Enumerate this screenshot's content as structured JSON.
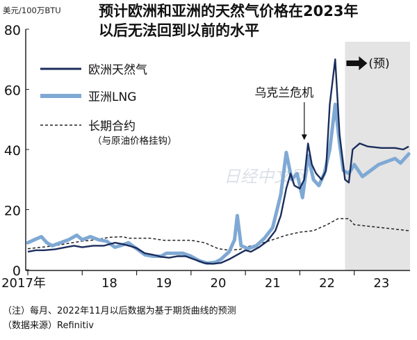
{
  "chart_data": {
    "type": "line",
    "title": "预计欧洲和亚洲的天然气价格在2023年以后无法回到以前的水平",
    "title_lines": [
      "预计欧洲和亚洲的天然气价格在2023年",
      "以后无法回到以前的水平"
    ],
    "ylabel": "美元/100万BTU",
    "ylim": [
      0,
      80
    ],
    "y_ticks": [
      0,
      20,
      40,
      60,
      80
    ],
    "x_range": [
      2017.0,
      2024.0
    ],
    "x_ticks": [
      {
        "label": "2017年",
        "x": 2017.0
      },
      {
        "label": "18",
        "x": 2018.0
      },
      {
        "label": "19",
        "x": 2019.0
      },
      {
        "label": "20",
        "x": 2020.0
      },
      {
        "label": "21",
        "x": 2021.0
      },
      {
        "label": "22",
        "x": 2022.0
      },
      {
        "label": "23",
        "x": 2023.0
      }
    ],
    "grid": false,
    "legend_position": "top-left",
    "forecast": {
      "start_x": 2022.83,
      "label": "(预)",
      "shade_color": "#e4e4e4"
    },
    "annotations": [
      {
        "text": "乌克兰危机",
        "x": 2022.12,
        "y": 42
      }
    ],
    "colors": {
      "europe": "#1b2d5c",
      "asia": "#7fa9d4",
      "contract": "#222222"
    },
    "series": [
      {
        "name": "欧洲天然气",
        "style": "solid-dark",
        "points": [
          [
            2017.0,
            6.0
          ],
          [
            2017.15,
            6.5
          ],
          [
            2017.3,
            6.5
          ],
          [
            2017.5,
            6.8
          ],
          [
            2017.7,
            7.5
          ],
          [
            2017.85,
            8.0
          ],
          [
            2018.0,
            7.5
          ],
          [
            2018.2,
            8.0
          ],
          [
            2018.4,
            8.0
          ],
          [
            2018.6,
            9.0
          ],
          [
            2018.75,
            8.5
          ],
          [
            2018.9,
            7.8
          ],
          [
            2019.0,
            7.2
          ],
          [
            2019.15,
            5.5
          ],
          [
            2019.3,
            5.0
          ],
          [
            2019.45,
            4.3
          ],
          [
            2019.6,
            4.0
          ],
          [
            2019.75,
            4.5
          ],
          [
            2019.9,
            4.5
          ],
          [
            2020.1,
            3.2
          ],
          [
            2020.25,
            2.2
          ],
          [
            2020.4,
            2.0
          ],
          [
            2020.55,
            2.3
          ],
          [
            2020.7,
            3.5
          ],
          [
            2020.85,
            5.0
          ],
          [
            2021.0,
            6.5
          ],
          [
            2021.1,
            6.0
          ],
          [
            2021.25,
            7.5
          ],
          [
            2021.4,
            9.5
          ],
          [
            2021.55,
            13.0
          ],
          [
            2021.65,
            18.0
          ],
          [
            2021.75,
            27.0
          ],
          [
            2021.83,
            32.0
          ],
          [
            2021.9,
            28.0
          ],
          [
            2022.0,
            27.0
          ],
          [
            2022.08,
            30.0
          ],
          [
            2022.15,
            42.0
          ],
          [
            2022.22,
            35.0
          ],
          [
            2022.3,
            32.0
          ],
          [
            2022.4,
            30.0
          ],
          [
            2022.48,
            33.0
          ],
          [
            2022.55,
            55.0
          ],
          [
            2022.65,
            70.0
          ],
          [
            2022.73,
            45.0
          ],
          [
            2022.83,
            30.0
          ],
          [
            2022.9,
            29.0
          ],
          [
            2022.97,
            40.0
          ],
          [
            2023.1,
            42.0
          ],
          [
            2023.25,
            41.0
          ],
          [
            2023.5,
            40.5
          ],
          [
            2023.75,
            40.5
          ],
          [
            2023.9,
            40.0
          ],
          [
            2024.0,
            41.0
          ]
        ]
      },
      {
        "name": "亚洲LNG",
        "style": "solid-light",
        "points": [
          [
            2017.0,
            9.0
          ],
          [
            2017.12,
            10.0
          ],
          [
            2017.25,
            11.0
          ],
          [
            2017.35,
            9.0
          ],
          [
            2017.45,
            8.0
          ],
          [
            2017.6,
            9.0
          ],
          [
            2017.75,
            10.0
          ],
          [
            2017.9,
            11.5
          ],
          [
            2018.0,
            10.0
          ],
          [
            2018.15,
            11.0
          ],
          [
            2018.3,
            10.0
          ],
          [
            2018.45,
            9.5
          ],
          [
            2018.6,
            7.5
          ],
          [
            2018.7,
            8.0
          ],
          [
            2018.85,
            9.0
          ],
          [
            2019.0,
            7.0
          ],
          [
            2019.15,
            5.0
          ],
          [
            2019.3,
            4.5
          ],
          [
            2019.45,
            4.5
          ],
          [
            2019.55,
            5.5
          ],
          [
            2019.7,
            5.5
          ],
          [
            2019.85,
            5.5
          ],
          [
            2020.0,
            4.5
          ],
          [
            2020.15,
            3.0
          ],
          [
            2020.3,
            2.2
          ],
          [
            2020.45,
            2.5
          ],
          [
            2020.55,
            3.5
          ],
          [
            2020.7,
            6.0
          ],
          [
            2020.8,
            10.0
          ],
          [
            2020.85,
            18.0
          ],
          [
            2020.92,
            8.0
          ],
          [
            2021.05,
            7.0
          ],
          [
            2021.2,
            8.0
          ],
          [
            2021.35,
            10.5
          ],
          [
            2021.5,
            14.0
          ],
          [
            2021.65,
            25.0
          ],
          [
            2021.75,
            39.0
          ],
          [
            2021.85,
            30.0
          ],
          [
            2021.95,
            32.0
          ],
          [
            2022.05,
            24.0
          ],
          [
            2022.15,
            38.0
          ],
          [
            2022.25,
            30.0
          ],
          [
            2022.35,
            28.0
          ],
          [
            2022.45,
            32.0
          ],
          [
            2022.55,
            40.0
          ],
          [
            2022.65,
            55.0
          ],
          [
            2022.73,
            42.0
          ],
          [
            2022.8,
            33.0
          ],
          [
            2022.9,
            32.0
          ],
          [
            2023.0,
            35.0
          ],
          [
            2023.15,
            31.0
          ],
          [
            2023.3,
            33.0
          ],
          [
            2023.45,
            35.0
          ],
          [
            2023.6,
            36.0
          ],
          [
            2023.75,
            37.0
          ],
          [
            2023.85,
            35.5
          ],
          [
            2024.0,
            38.5
          ]
        ]
      },
      {
        "name": "长期合约",
        "note": "（与原油价格挂钩）",
        "style": "dashed",
        "points": [
          [
            2017.0,
            7.0
          ],
          [
            2017.25,
            7.5
          ],
          [
            2017.5,
            8.0
          ],
          [
            2017.75,
            8.8
          ],
          [
            2018.0,
            9.5
          ],
          [
            2018.25,
            10.0
          ],
          [
            2018.5,
            10.8
          ],
          [
            2018.75,
            11.0
          ],
          [
            2018.85,
            10.5
          ],
          [
            2019.0,
            10.5
          ],
          [
            2019.25,
            10.5
          ],
          [
            2019.5,
            9.8
          ],
          [
            2019.75,
            9.8
          ],
          [
            2020.0,
            9.8
          ],
          [
            2020.25,
            9.0
          ],
          [
            2020.5,
            7.0
          ],
          [
            2020.7,
            6.5
          ],
          [
            2020.9,
            6.8
          ],
          [
            2021.0,
            7.5
          ],
          [
            2021.25,
            8.5
          ],
          [
            2021.5,
            10.0
          ],
          [
            2021.75,
            11.5
          ],
          [
            2022.0,
            12.5
          ],
          [
            2022.25,
            13.0
          ],
          [
            2022.5,
            15.0
          ],
          [
            2022.7,
            17.0
          ],
          [
            2022.9,
            17.0
          ],
          [
            2023.0,
            15.0
          ],
          [
            2023.25,
            14.5
          ],
          [
            2023.5,
            14.0
          ],
          [
            2023.75,
            13.5
          ],
          [
            2024.0,
            13.0
          ]
        ]
      }
    ],
    "notes": [
      "（注）每月、2022年11月以后数据为基于期货曲线的预测",
      "（数据来源）Refinitiv"
    ],
    "watermark": "日经中文网"
  }
}
